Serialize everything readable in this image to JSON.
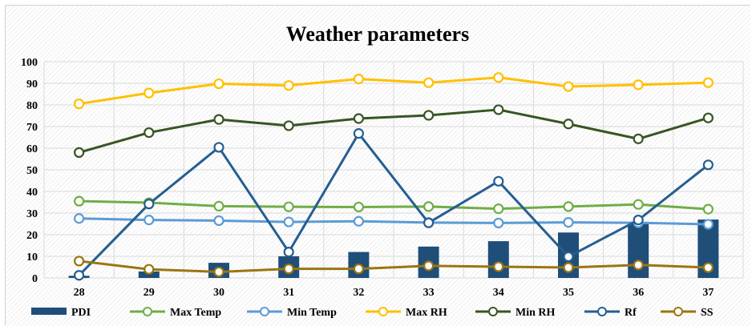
{
  "chart_data": {
    "type": "line",
    "title": "Weather parameters",
    "xlabel": "",
    "ylabel": "",
    "categories": [
      "28",
      "29",
      "30",
      "31",
      "32",
      "33",
      "34",
      "35",
      "36",
      "37"
    ],
    "ylim": [
      0,
      100
    ],
    "yticks": [
      "0",
      "10",
      "20",
      "30",
      "40",
      "50",
      "60",
      "70",
      "80",
      "90",
      "100"
    ],
    "grid": true,
    "legend_position": "bottom",
    "series": [
      {
        "name": "PDI",
        "kind": "bar",
        "color": "#1f4e79",
        "values": [
          1,
          3,
          7,
          10,
          12,
          14.5,
          17,
          21,
          25,
          27
        ]
      },
      {
        "name": "Max Temp",
        "kind": "line",
        "color": "#70ad47",
        "values": [
          35.5,
          34.8,
          33.2,
          32.9,
          32.8,
          33.0,
          32.0,
          33.0,
          34.0,
          31.8
        ]
      },
      {
        "name": "Min Temp",
        "kind": "line",
        "color": "#5b9bd5",
        "values": [
          27.5,
          26.8,
          26.5,
          25.9,
          26.2,
          25.6,
          25.4,
          25.7,
          25.5,
          24.8
        ]
      },
      {
        "name": "Max RH",
        "kind": "line",
        "color": "#ffc000",
        "values": [
          80.5,
          85.5,
          89.8,
          89.0,
          92.0,
          90.3,
          92.7,
          88.5,
          89.3,
          90.3
        ]
      },
      {
        "name": "Min RH",
        "kind": "line",
        "color": "#375623",
        "values": [
          58.0,
          67.2,
          73.3,
          70.4,
          73.7,
          75.2,
          77.8,
          71.2,
          64.3,
          74.0
        ]
      },
      {
        "name": "Rf",
        "kind": "line",
        "color": "#255e91",
        "values": [
          1.2,
          34.2,
          60.4,
          12.0,
          66.8,
          25.5,
          44.7,
          9.8,
          26.8,
          52.3
        ]
      },
      {
        "name": "SS",
        "kind": "line",
        "color": "#9c7510",
        "values": [
          7.8,
          4.0,
          2.8,
          4.2,
          4.2,
          5.6,
          5.2,
          4.8,
          6.0,
          4.8
        ]
      }
    ]
  }
}
